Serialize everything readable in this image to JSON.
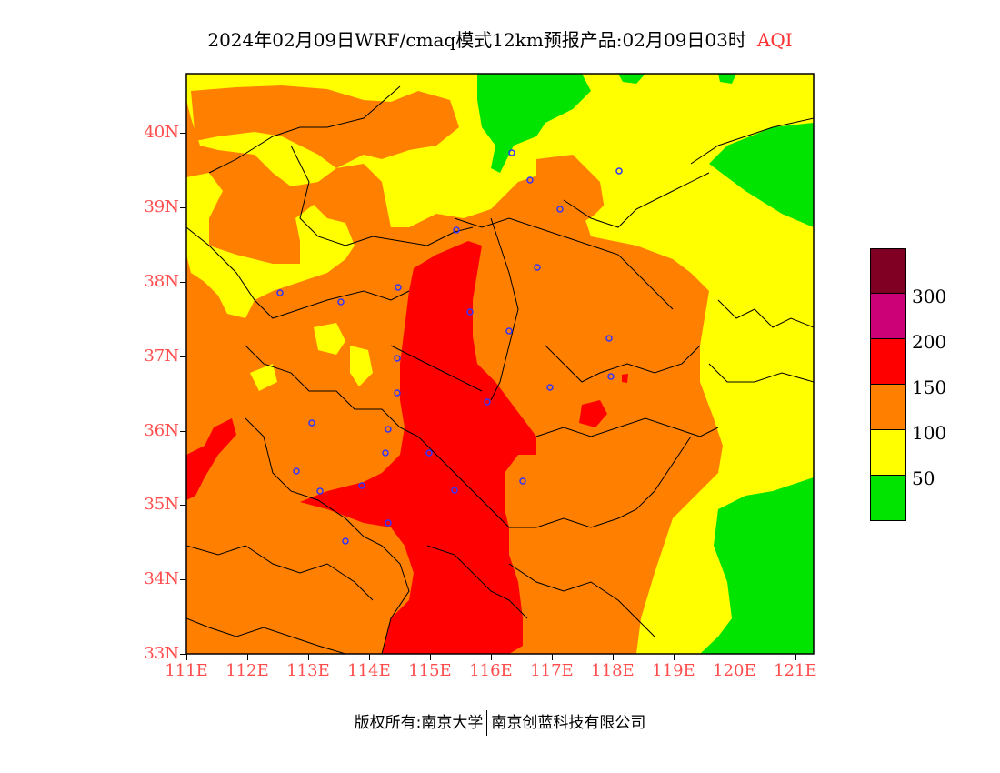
{
  "header": {
    "title": "2024年02月09日WRF/cmaq模式12km预报产品:02月09日03时",
    "variable": "AQI"
  },
  "map": {
    "latitude_labels": [
      "40N",
      "39N",
      "38N",
      "37N",
      "36N",
      "35N",
      "34N",
      "33N"
    ],
    "longitude_labels": [
      "111E",
      "112E",
      "113E",
      "114E",
      "115E",
      "116E",
      "117E",
      "118E",
      "119E",
      "120E",
      "121E"
    ],
    "lon_range": [
      111,
      121.3
    ],
    "lat_range": [
      33,
      40.8
    ],
    "city_markers": "blue-circle-icon"
  },
  "legend": {
    "labels": [
      "300",
      "200",
      "150",
      "100",
      "50"
    ],
    "colors": {
      "level_6": "#7f0022",
      "level_5": "#cc0077",
      "level_4": "#ff0000",
      "level_3": "#ff7f00",
      "level_2": "#ffff00",
      "level_1": "#00e400"
    }
  },
  "footer": {
    "copyright": "版权所有:南京大学",
    "company": "南京创蓝科技有限公司"
  }
}
